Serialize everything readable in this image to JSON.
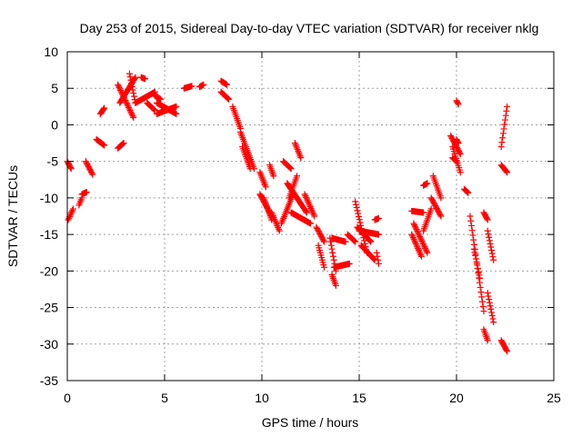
{
  "chart_data": {
    "type": "scatter",
    "title": "Day 253 of 2015, Sidereal Day-to-day VTEC variation (SDTVAR) for receiver nklg",
    "xlabel": "GPS time / hours",
    "ylabel": "SDTVAR / TECUs",
    "xlim": [
      0,
      25
    ],
    "ylim": [
      -35,
      10
    ],
    "xticks": [
      0,
      5,
      10,
      15,
      20,
      25
    ],
    "yticks": [
      -35,
      -30,
      -25,
      -20,
      -15,
      -10,
      -5,
      0,
      5,
      10
    ],
    "grid": true,
    "marker": "+",
    "color": "#ff0000",
    "segments": [
      {
        "x0": 0.0,
        "x1": 0.2,
        "y0": -5.0,
        "y1": -6.0
      },
      {
        "x0": 0.05,
        "x1": 0.3,
        "y0": -13.0,
        "y1": -11.5
      },
      {
        "x0": 0.6,
        "x1": 0.75,
        "y0": -11.0,
        "y1": -10.0
      },
      {
        "x0": 0.75,
        "x1": 1.0,
        "y0": -9.5,
        "y1": -9.2
      },
      {
        "x0": 0.95,
        "x1": 1.3,
        "y0": -5.0,
        "y1": -6.8
      },
      {
        "x0": 1.5,
        "x1": 1.9,
        "y0": -2.0,
        "y1": -2.8
      },
      {
        "x0": 1.7,
        "x1": 1.9,
        "y0": 1.5,
        "y1": 2.3
      },
      {
        "x0": 2.6,
        "x1": 2.9,
        "y0": -3.2,
        "y1": -2.5
      },
      {
        "x0": 2.7,
        "x1": 3.5,
        "y0": 3.0,
        "y1": 6.5
      },
      {
        "x0": 2.6,
        "x1": 3.4,
        "y0": 5.5,
        "y1": 1.0
      },
      {
        "x0": 3.2,
        "x1": 3.5,
        "y0": 7.0,
        "y1": 3.0
      },
      {
        "x0": 3.5,
        "x1": 4.5,
        "y0": 3.0,
        "y1": 4.5
      },
      {
        "x0": 3.8,
        "x1": 4.0,
        "y0": 6.5,
        "y1": 6.3
      },
      {
        "x0": 4.1,
        "x1": 4.5,
        "y0": 3.0,
        "y1": 2.0
      },
      {
        "x0": 4.5,
        "x1": 4.8,
        "y0": 4.0,
        "y1": 3.5
      },
      {
        "x0": 4.6,
        "x1": 5.6,
        "y0": 3.0,
        "y1": 1.5
      },
      {
        "x0": 4.6,
        "x1": 5.6,
        "y0": 1.5,
        "y1": 2.5
      },
      {
        "x0": 6.0,
        "x1": 6.4,
        "y0": 5.0,
        "y1": 5.3
      },
      {
        "x0": 6.8,
        "x1": 7.0,
        "y0": 5.2,
        "y1": 5.5
      },
      {
        "x0": 7.9,
        "x1": 8.2,
        "y0": 6.0,
        "y1": 5.5
      },
      {
        "x0": 7.9,
        "x1": 8.3,
        "y0": 4.5,
        "y1": 3.5
      },
      {
        "x0": 8.5,
        "x1": 8.9,
        "y0": 2.5,
        "y1": -0.5
      },
      {
        "x0": 8.9,
        "x1": 9.6,
        "y0": -1.0,
        "y1": -6.0
      },
      {
        "x0": 9.0,
        "x1": 9.4,
        "y0": -3.0,
        "y1": -6.0
      },
      {
        "x0": 9.9,
        "x1": 10.2,
        "y0": -6.5,
        "y1": -8.5
      },
      {
        "x0": 9.9,
        "x1": 10.5,
        "y0": -9.5,
        "y1": -12.5
      },
      {
        "x0": 10.1,
        "x1": 10.5,
        "y0": -10.0,
        "y1": -13.0
      },
      {
        "x0": 10.4,
        "x1": 10.6,
        "y0": -5.5,
        "y1": -7.0
      },
      {
        "x0": 10.5,
        "x1": 10.9,
        "y0": -12.0,
        "y1": -14.5
      },
      {
        "x0": 11.1,
        "x1": 11.5,
        "y0": -5.0,
        "y1": -6.0
      },
      {
        "x0": 11.0,
        "x1": 11.6,
        "y0": -13.5,
        "y1": -9.5
      },
      {
        "x0": 11.4,
        "x1": 11.8,
        "y0": -10.0,
        "y1": -7.0
      },
      {
        "x0": 11.3,
        "x1": 12.3,
        "y0": -8.0,
        "y1": -12.0
      },
      {
        "x0": 11.7,
        "x1": 12.0,
        "y0": -2.5,
        "y1": -4.5
      },
      {
        "x0": 11.5,
        "x1": 12.5,
        "y0": -12.0,
        "y1": -13.5
      },
      {
        "x0": 12.2,
        "x1": 12.7,
        "y0": -9.5,
        "y1": -12.5
      },
      {
        "x0": 12.8,
        "x1": 13.2,
        "y0": -14.0,
        "y1": -16.0
      },
      {
        "x0": 12.9,
        "x1": 13.2,
        "y0": -16.5,
        "y1": -19.5
      },
      {
        "x0": 13.5,
        "x1": 13.8,
        "y0": -15.5,
        "y1": -20.0
      },
      {
        "x0": 13.6,
        "x1": 13.8,
        "y0": -20.5,
        "y1": -22.0
      },
      {
        "x0": 13.6,
        "x1": 14.3,
        "y0": -15.5,
        "y1": -16.0
      },
      {
        "x0": 13.7,
        "x1": 14.5,
        "y0": -19.5,
        "y1": -19.0
      },
      {
        "x0": 14.4,
        "x1": 14.8,
        "y0": -15.0,
        "y1": -16.0
      },
      {
        "x0": 14.8,
        "x1": 15.4,
        "y0": -10.5,
        "y1": -17.5
      },
      {
        "x0": 14.9,
        "x1": 15.6,
        "y0": -14.0,
        "y1": -16.0
      },
      {
        "x0": 15.0,
        "x1": 16.0,
        "y0": -14.5,
        "y1": -15.0
      },
      {
        "x0": 15.1,
        "x1": 15.8,
        "y0": -16.5,
        "y1": -18.5
      },
      {
        "x0": 15.8,
        "x1": 16.0,
        "y0": -13.0,
        "y1": -12.8
      },
      {
        "x0": 15.9,
        "x1": 16.0,
        "y0": -17.5,
        "y1": -19.0
      },
      {
        "x0": 17.7,
        "x1": 18.3,
        "y0": -11.8,
        "y1": -12.0
      },
      {
        "x0": 17.7,
        "x1": 18.2,
        "y0": -15.0,
        "y1": -18.0
      },
      {
        "x0": 17.8,
        "x1": 18.5,
        "y0": -13.5,
        "y1": -17.5
      },
      {
        "x0": 18.3,
        "x1": 18.7,
        "y0": -14.5,
        "y1": -11.5
      },
      {
        "x0": 18.3,
        "x1": 18.5,
        "y0": -8.3,
        "y1": -8.0
      },
      {
        "x0": 18.7,
        "x1": 19.2,
        "y0": -10.0,
        "y1": -12.5
      },
      {
        "x0": 18.8,
        "x1": 19.2,
        "y0": -7.0,
        "y1": -10.0
      },
      {
        "x0": 19.7,
        "x1": 20.2,
        "y0": -1.5,
        "y1": -4.0
      },
      {
        "x0": 19.8,
        "x1": 20.2,
        "y0": -3.0,
        "y1": -6.5
      },
      {
        "x0": 19.8,
        "x1": 20.0,
        "y0": -4.5,
        "y1": -5.0
      },
      {
        "x0": 20.0,
        "x1": 20.1,
        "y0": 3.3,
        "y1": 2.8
      },
      {
        "x0": 20.0,
        "x1": 20.1,
        "y0": -2.0,
        "y1": -2.5
      },
      {
        "x0": 20.4,
        "x1": 20.6,
        "y0": -8.8,
        "y1": -9.3
      },
      {
        "x0": 20.7,
        "x1": 21.4,
        "y0": -12.5,
        "y1": -25.5
      },
      {
        "x0": 20.9,
        "x1": 21.2,
        "y0": -17.0,
        "y1": -21.0
      },
      {
        "x0": 21.4,
        "x1": 21.6,
        "y0": -12.0,
        "y1": -13.0
      },
      {
        "x0": 21.4,
        "x1": 21.6,
        "y0": -28.0,
        "y1": -29.5
      },
      {
        "x0": 21.6,
        "x1": 21.9,
        "y0": -23.0,
        "y1": -27.0
      },
      {
        "x0": 21.6,
        "x1": 21.9,
        "y0": -14.5,
        "y1": -18.5
      },
      {
        "x0": 22.3,
        "x1": 22.6,
        "y0": -3.0,
        "y1": 2.5
      },
      {
        "x0": 22.3,
        "x1": 22.6,
        "y0": -5.5,
        "y1": -6.5
      },
      {
        "x0": 22.3,
        "x1": 22.6,
        "y0": -29.5,
        "y1": -31.0
      }
    ]
  }
}
